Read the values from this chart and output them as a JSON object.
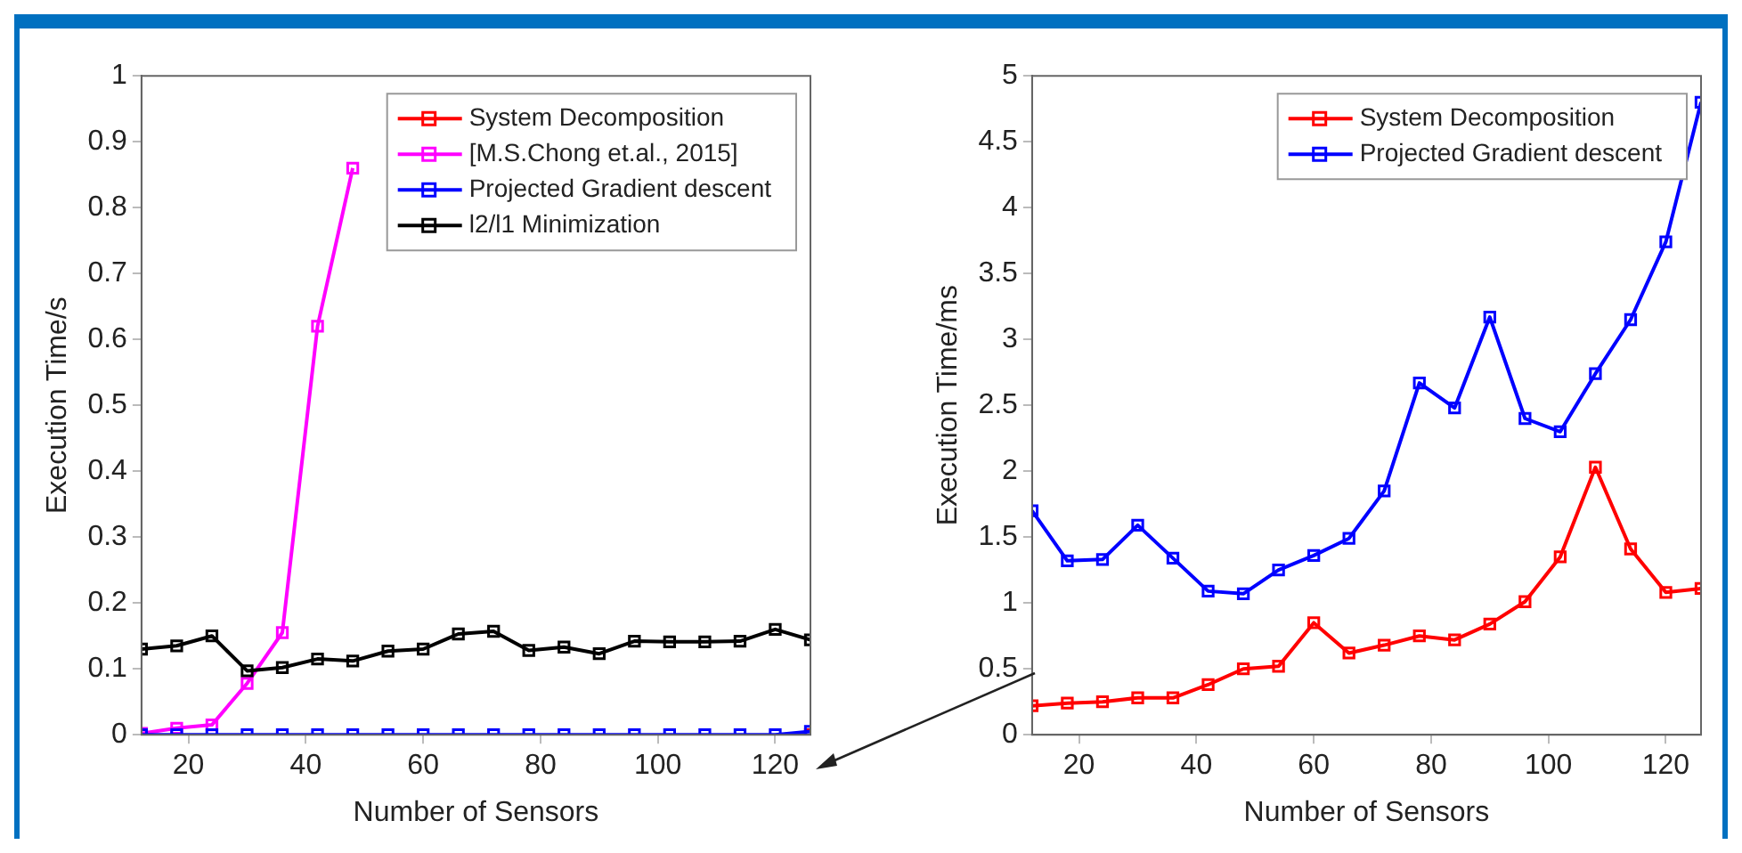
{
  "chart_data": [
    {
      "type": "line",
      "xlabel": "Number of Sensors",
      "ylabel": "Execution Time/s",
      "x": [
        12,
        18,
        24,
        30,
        36,
        42,
        48,
        54,
        60,
        66,
        72,
        78,
        84,
        90,
        96,
        102,
        108,
        114,
        120,
        126
      ],
      "xlim": [
        12,
        126
      ],
      "xticks": [
        20,
        40,
        60,
        80,
        100,
        120
      ],
      "ylim": [
        0,
        1
      ],
      "yticks": [
        0,
        0.1,
        0.2,
        0.3,
        0.4,
        0.5,
        0.6,
        0.7,
        0.8,
        0.9,
        1
      ],
      "grid": false,
      "legend": "top right",
      "marker": "square",
      "line_style": "solid",
      "series": [
        {
          "name": "System Decomposition",
          "color": "#ff0000",
          "values": [
            null,
            null,
            null,
            null,
            null,
            null,
            null,
            null,
            null,
            null,
            null,
            null,
            null,
            null,
            null,
            null,
            null,
            null,
            null,
            0
          ]
        },
        {
          "name": "[M.S.Chong et.al., 2015]",
          "color": "#ff00ff",
          "values": [
            0.002,
            0.01,
            0.015,
            0.078,
            0.155,
            0.62,
            0.86,
            null,
            null,
            null,
            null,
            null,
            null,
            null,
            null,
            null,
            null,
            null,
            null,
            null
          ]
        },
        {
          "name": "Projected Gradient descent",
          "color": "#0000ff",
          "values": [
            0,
            0,
            0,
            0,
            0,
            0,
            0,
            0,
            0,
            0,
            0,
            0,
            0,
            0,
            0,
            0,
            0,
            0,
            0,
            0.005
          ]
        },
        {
          "name": "l2/l1 Minimization",
          "color": "#000000",
          "values": [
            0.13,
            0.135,
            0.15,
            0.097,
            0.102,
            0.115,
            0.112,
            0.127,
            0.13,
            0.153,
            0.157,
            0.128,
            0.133,
            0.123,
            0.142,
            0.141,
            0.141,
            0.142,
            0.16,
            0.144
          ]
        }
      ]
    },
    {
      "type": "line",
      "xlabel": "Number of Sensors",
      "ylabel": "Execution Time/ms",
      "x": [
        12,
        18,
        24,
        30,
        36,
        42,
        48,
        54,
        60,
        66,
        72,
        78,
        84,
        90,
        96,
        102,
        108,
        114,
        120,
        126
      ],
      "xlim": [
        12,
        126
      ],
      "xticks": [
        20,
        40,
        60,
        80,
        100,
        120
      ],
      "ylim": [
        0,
        5
      ],
      "yticks": [
        0,
        0.5,
        1,
        1.5,
        2,
        2.5,
        3,
        3.5,
        4,
        4.5,
        5
      ],
      "grid": false,
      "legend": "top right",
      "marker": "square",
      "line_style": "solid",
      "series": [
        {
          "name": "System Decomposition",
          "color": "#ff0000",
          "values": [
            0.22,
            0.24,
            0.25,
            0.28,
            0.28,
            0.38,
            0.5,
            0.52,
            0.85,
            0.62,
            0.68,
            0.75,
            0.72,
            0.84,
            1.01,
            1.35,
            2.03,
            1.41,
            1.08,
            1.11
          ]
        },
        {
          "name": "Projected Gradient descent",
          "color": "#0000ff",
          "values": [
            1.7,
            1.32,
            1.33,
            1.59,
            1.34,
            1.09,
            1.07,
            1.25,
            1.36,
            1.49,
            1.85,
            2.67,
            2.48,
            3.17,
            2.4,
            2.3,
            2.74,
            3.15,
            3.74,
            4.8
          ]
        }
      ]
    }
  ]
}
